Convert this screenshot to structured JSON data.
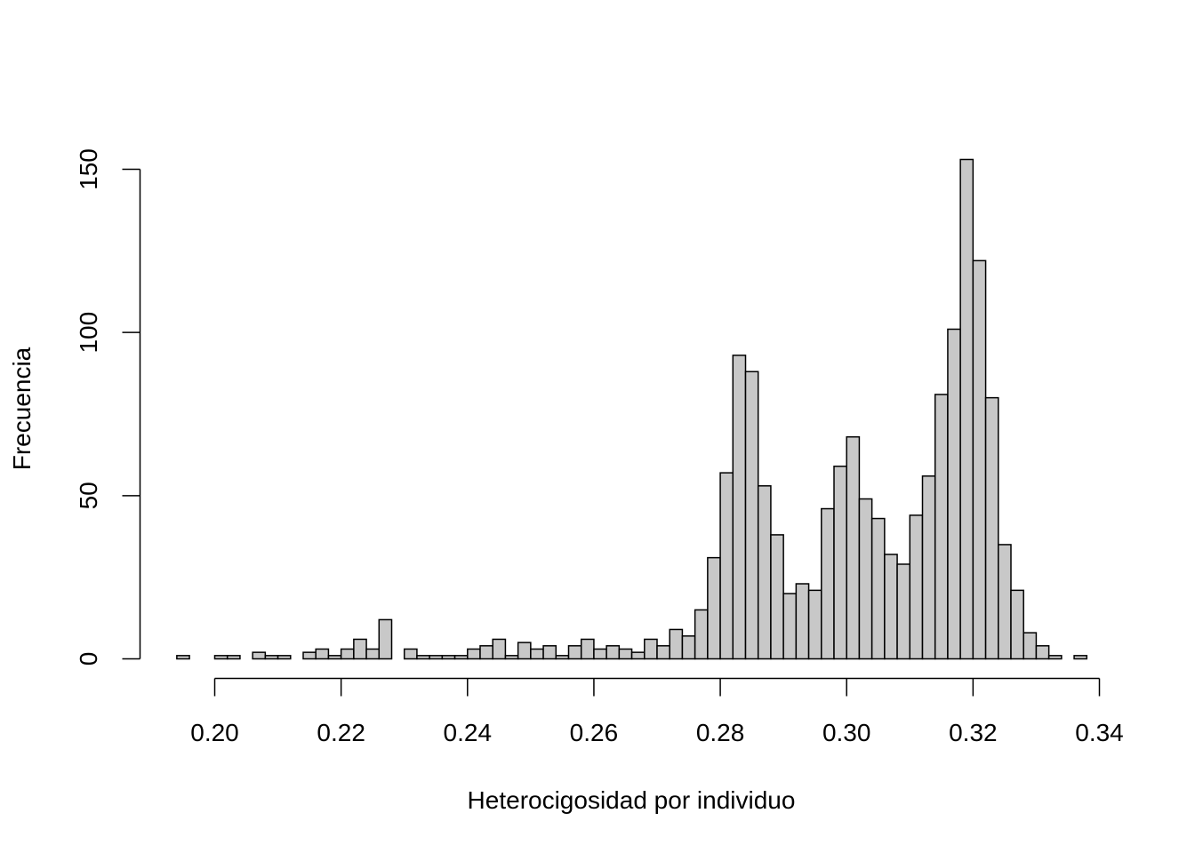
{
  "chart_data": {
    "type": "bar",
    "title": "",
    "xlabel": "Heterocigosidad por individuo",
    "ylabel": "Frecuencia",
    "bin_width": 0.002,
    "bin_start": 0.194,
    "counts": [
      1,
      0,
      0,
      1,
      1,
      0,
      2,
      1,
      1,
      0,
      2,
      3,
      1,
      3,
      6,
      3,
      12,
      0,
      3,
      1,
      1,
      1,
      1,
      3,
      4,
      6,
      1,
      5,
      3,
      4,
      1,
      4,
      6,
      3,
      4,
      3,
      2,
      6,
      4,
      9,
      7,
      15,
      31,
      57,
      93,
      88,
      53,
      38,
      20,
      23,
      21,
      46,
      59,
      68,
      49,
      43,
      32,
      29,
      44,
      56,
      81,
      101,
      153,
      122,
      80,
      35,
      21,
      8,
      4,
      1,
      0,
      1
    ],
    "xlim": [
      0.194,
      0.338
    ],
    "ylim": [
      0,
      153
    ],
    "x_ticks": [
      "0.20",
      "0.22",
      "0.24",
      "0.26",
      "0.28",
      "0.30",
      "0.32",
      "0.34"
    ],
    "y_ticks": [
      "0",
      "50",
      "100",
      "150"
    ],
    "grid": false
  }
}
